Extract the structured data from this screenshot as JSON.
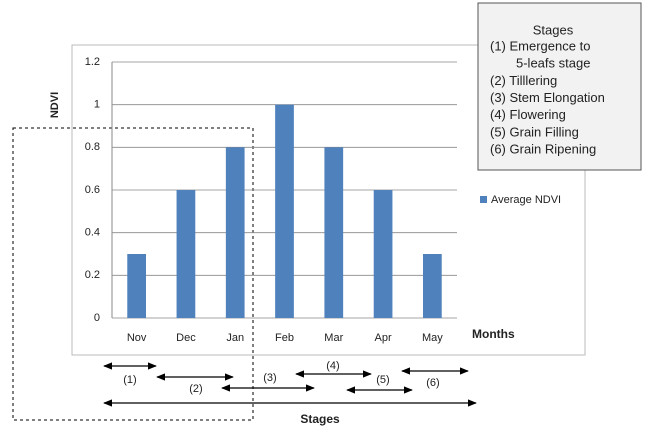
{
  "chart_data": {
    "type": "bar",
    "categories": [
      "Nov",
      "Dec",
      "Jan",
      "Feb",
      "Mar",
      "Apr",
      "May"
    ],
    "series": [
      {
        "name": "Average NDVI",
        "color": "#4f81bd",
        "values": [
          0.3,
          0.6,
          0.8,
          1,
          0.8,
          0.6,
          0.3
        ]
      }
    ],
    "ylim": [
      0,
      1.2
    ],
    "yticks": [
      0,
      0.2,
      0.4,
      0.6,
      0.8,
      1,
      1.2
    ],
    "grid": true,
    "y_label": "NDVI",
    "x_label": "Months",
    "legend": "right",
    "stage_box": {
      "title": "Stages",
      "lines": [
        "(1) Emergence to",
        "5-leafs stage",
        "(2) Tilllering",
        "(3) Stem Elongation",
        "(4) Flowering",
        "(5) Grain Filling",
        "(6) Grain Ripening"
      ]
    },
    "stage_labels": [
      "(1)",
      "(2)",
      "(3)",
      "(4)",
      "(5)",
      "(6)"
    ],
    "stage_axis_label": "Stages"
  }
}
